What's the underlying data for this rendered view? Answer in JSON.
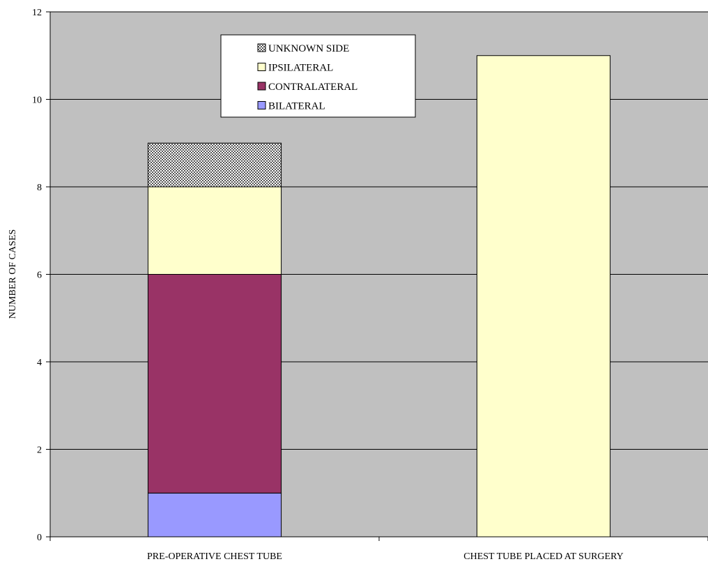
{
  "chart_data": {
    "type": "bar",
    "stacked": true,
    "categories": [
      "PRE-OPERATIVE CHEST TUBE",
      "CHEST TUBE PLACED AT SURGERY"
    ],
    "series": [
      {
        "name": "BILATERAL",
        "values": [
          1,
          0
        ],
        "color": "#9999ff",
        "pattern": "solid"
      },
      {
        "name": "CONTRALATERAL",
        "values": [
          5,
          0
        ],
        "color": "#993366",
        "pattern": "solid"
      },
      {
        "name": "IPSILATERAL",
        "values": [
          2,
          11
        ],
        "color": "#ffffcc",
        "pattern": "solid"
      },
      {
        "name": "UNKNOWN SIDE",
        "values": [
          1,
          0
        ],
        "color": "#c0c0c0",
        "pattern": "checkered"
      }
    ],
    "title": "",
    "xlabel": "",
    "ylabel": "NUMBER OF CASES",
    "ylim": [
      0,
      12
    ],
    "yticks": [
      0,
      2,
      4,
      6,
      8,
      10,
      12
    ],
    "grid": true,
    "legend_position": "top-left inside plot",
    "legend_order": [
      "UNKNOWN SIDE",
      "IPSILATERAL",
      "CONTRALATERAL",
      "BILATERAL"
    ],
    "plot_background": "#c0c0c0"
  }
}
